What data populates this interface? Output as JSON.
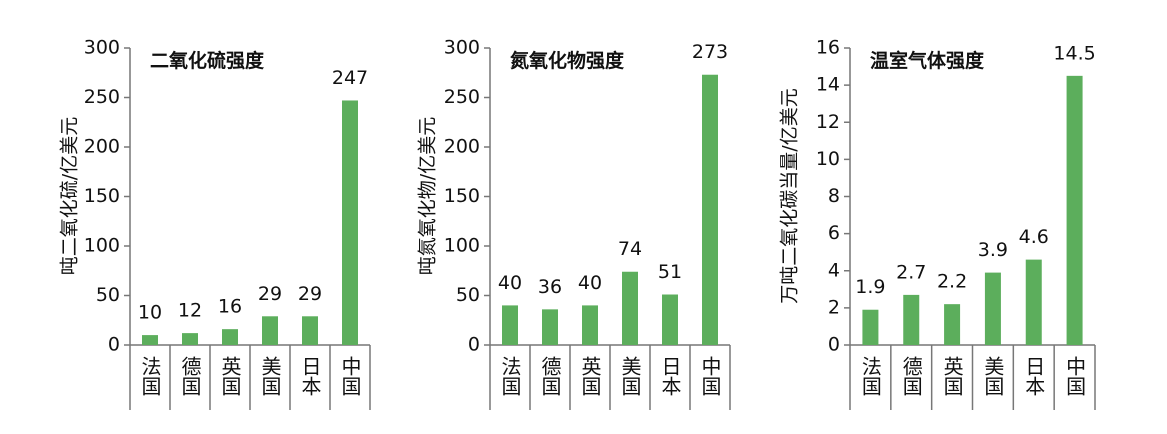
{
  "chart_data": [
    {
      "type": "bar",
      "title": "二氧化硫强度",
      "y_label": "吨二氧化硫/亿美元",
      "categories": [
        "法国",
        "德国",
        "英国",
        "美国",
        "日本",
        "中国"
      ],
      "values": [
        10,
        12,
        16,
        29,
        29,
        247
      ],
      "color": "#5cae5c",
      "ylim": [
        0,
        300
      ],
      "yticks": [
        0,
        50,
        100,
        150,
        200,
        250,
        300
      ]
    },
    {
      "type": "bar",
      "title": "氮氧化物强度",
      "y_label": "吨氮氧化物/亿美元",
      "categories": [
        "法国",
        "德国",
        "英国",
        "美国",
        "日本",
        "中国"
      ],
      "values": [
        40,
        36,
        40,
        74,
        51,
        273
      ],
      "color": "#5cae5c",
      "ylim": [
        0,
        300
      ],
      "yticks": [
        0,
        50,
        100,
        150,
        200,
        250,
        300
      ]
    },
    {
      "type": "bar",
      "title": "温室气体强度",
      "y_label": "万吨二氧化碳当量/亿美元",
      "categories": [
        "法国",
        "德国",
        "英国",
        "美国",
        "日本",
        "中国"
      ],
      "values": [
        1.9,
        2.7,
        2.2,
        3.9,
        4.6,
        14.5
      ],
      "color": "#5cae5c",
      "ylim": [
        0,
        16
      ],
      "yticks": [
        0,
        2,
        4,
        6,
        8,
        10,
        12,
        14,
        16
      ]
    }
  ]
}
